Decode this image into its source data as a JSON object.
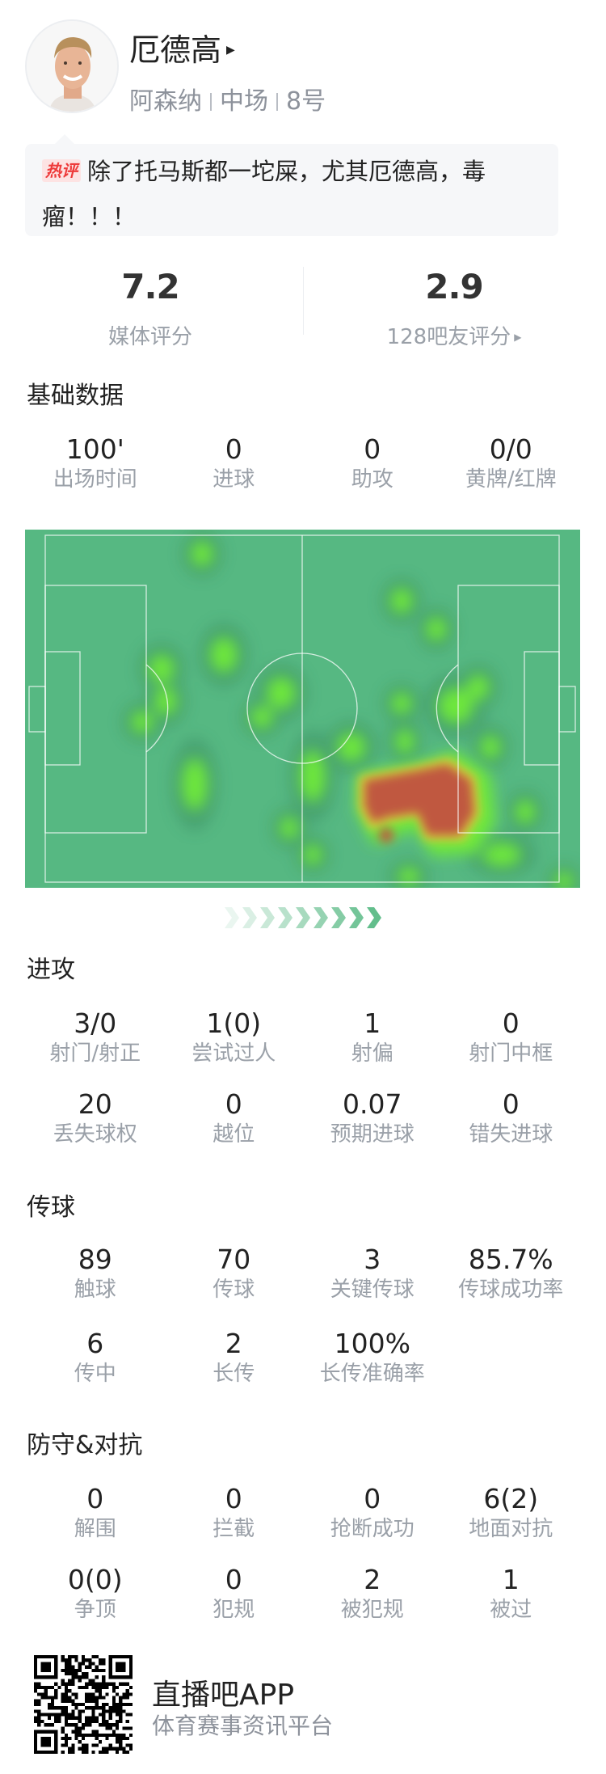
{
  "player": {
    "name": "厄德高",
    "team": "阿森纳",
    "position": "中场",
    "number": "8号"
  },
  "hot_comment": {
    "badge": "热评",
    "text": "除了托马斯都一坨屎，尤其厄德高，毒瘤！！！"
  },
  "ratings": {
    "media": {
      "value": "7.2",
      "label": "媒体评分"
    },
    "fans": {
      "value": "2.9",
      "label": "128吧友评分"
    }
  },
  "basic": {
    "title": "基础数据",
    "stats": [
      {
        "value": "100'",
        "label": "出场时间"
      },
      {
        "value": "0",
        "label": "进球"
      },
      {
        "value": "0",
        "label": "助攻"
      },
      {
        "value": "0/0",
        "label": "黄牌/红牌"
      }
    ]
  },
  "heatmap": {
    "colors": {
      "pitch": "#56b882",
      "low": "#6ee83a",
      "high": "#c0583f"
    }
  },
  "attack": {
    "title": "进攻",
    "rows": [
      [
        {
          "value": "3/0",
          "label": "射门/射正"
        },
        {
          "value": "1(0)",
          "label": "尝试过人"
        },
        {
          "value": "1",
          "label": "射偏"
        },
        {
          "value": "0",
          "label": "射门中框"
        }
      ],
      [
        {
          "value": "20",
          "label": "丢失球权"
        },
        {
          "value": "0",
          "label": "越位"
        },
        {
          "value": "0.07",
          "label": "预期进球"
        },
        {
          "value": "0",
          "label": "错失进球"
        }
      ]
    ]
  },
  "passing": {
    "title": "传球",
    "rows": [
      [
        {
          "value": "89",
          "label": "触球"
        },
        {
          "value": "70",
          "label": "传球"
        },
        {
          "value": "3",
          "label": "关键传球"
        },
        {
          "value": "85.7%",
          "label": "传球成功率"
        }
      ],
      [
        {
          "value": "6",
          "label": "传中"
        },
        {
          "value": "2",
          "label": "长传"
        },
        {
          "value": "100%",
          "label": "长传准确率"
        }
      ]
    ]
  },
  "defense": {
    "title": "防守&对抗",
    "rows": [
      [
        {
          "value": "0",
          "label": "解围"
        },
        {
          "value": "0",
          "label": "拦截"
        },
        {
          "value": "0",
          "label": "抢断成功"
        },
        {
          "value": "6(2)",
          "label": "地面对抗"
        }
      ],
      [
        {
          "value": "0(0)",
          "label": "争顶"
        },
        {
          "value": "0",
          "label": "犯规"
        },
        {
          "value": "2",
          "label": "被犯规"
        },
        {
          "value": "1",
          "label": "被过"
        }
      ]
    ]
  },
  "footer": {
    "app_name": "直播吧APP",
    "tagline": "体育赛事资讯平台",
    "qr_icon": "qr-code-icon"
  }
}
